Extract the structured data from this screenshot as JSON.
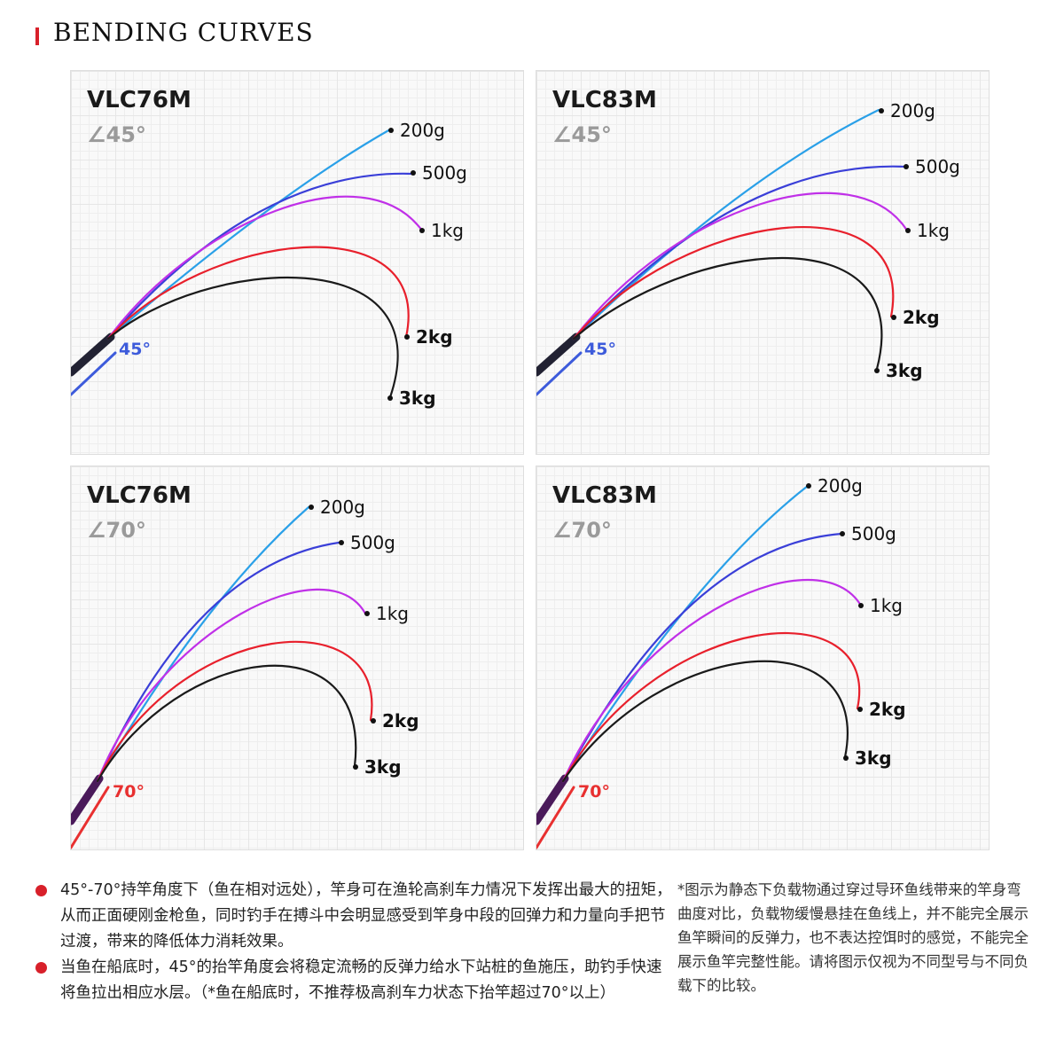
{
  "header": {
    "title": "BENDING CURVES",
    "accent_color": "#d8202a"
  },
  "panels": [
    {
      "model": "VLC76M",
      "angle": "∠45°",
      "angle_mark": "45°",
      "angle_color": "#3d5bdb",
      "loads": [
        "200g",
        "500g",
        "1kg",
        "2kg",
        "3kg"
      ]
    },
    {
      "model": "VLC83M",
      "angle": "∠45°",
      "angle_mark": "45°",
      "angle_color": "#3d5bdb",
      "loads": [
        "200g",
        "500g",
        "1kg",
        "2kg",
        "3kg"
      ]
    },
    {
      "model": "VLC76M",
      "angle": "∠70°",
      "angle_mark": "70°",
      "angle_color": "#e83030",
      "loads": [
        "200g",
        "500g",
        "1kg",
        "2kg",
        "3kg"
      ]
    },
    {
      "model": "VLC83M",
      "angle": "∠70°",
      "angle_mark": "70°",
      "angle_color": "#e83030",
      "loads": [
        "200g",
        "500g",
        "1kg",
        "2kg",
        "3kg"
      ]
    }
  ],
  "curve_colors": {
    "200g": "#2aa0e8",
    "500g": "#3a3fd8",
    "1kg": "#c030e8",
    "2kg": "#e8202c",
    "3kg": "#1a1a1a"
  },
  "notes": {
    "bullet1": "45°-70°持竿角度下（鱼在相对远处），竿身可在渔轮高刹车力情况下发挥出最大的扭矩，从而正面硬刚金枪鱼，同时钓手在搏斗中会明显感受到竿身中段的回弹力和力量向手把节过渡，带来的降低体力消耗效果。",
    "bullet2": "当鱼在船底时，45°的抬竿角度会将稳定流畅的反弹力给水下站桩的鱼施压，助钓手快速将鱼拉出相应水层。（*鱼在船底时，不推荐极高刹车力状态下抬竿超过70°以上）",
    "disclaimer": "*图示为静态下负载物通过穿过导环鱼线带来的竿身弯曲度对比，负载物缓慢悬挂在鱼线上，并不能完全展示鱼竿瞬间的反弹力，也不表达控饵时的感觉，不能完全展示鱼竿完整性能。请将图示仅视为不同型号与不同负载下的比较。"
  }
}
